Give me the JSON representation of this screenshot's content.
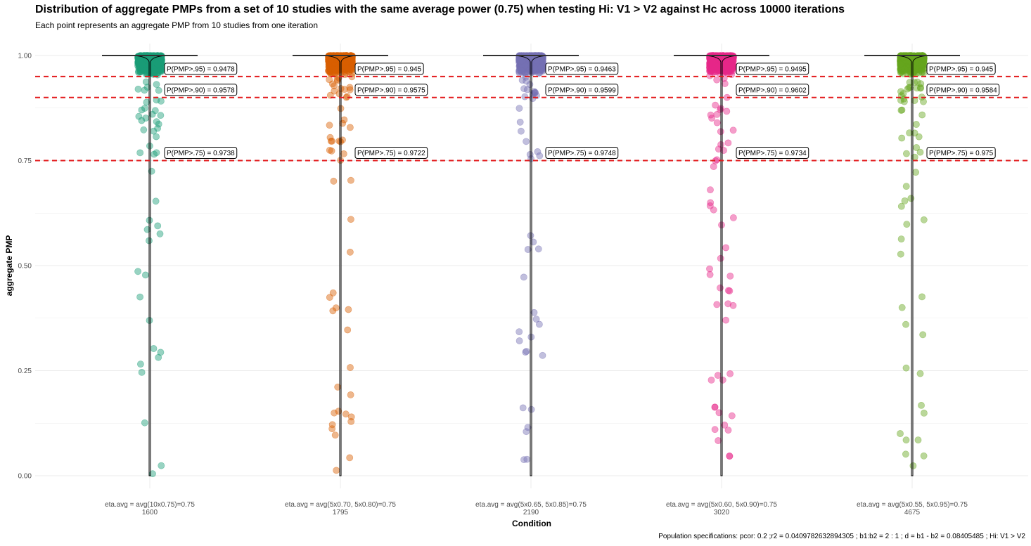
{
  "chart_data": {
    "type": "scatter",
    "title": "Distribution of aggregate PMPs from a set of 10 studies with the same average power (0.75) when testing Hi: V1 > V2 against Hc across 10000 iterations",
    "subtitle": "Each point represents an aggregate PMP from 10 studies from one iteration",
    "xlabel": "Condition",
    "ylabel": "aggregate PMP",
    "ylim": [
      0,
      1
    ],
    "y_ticks": [
      "0.00",
      "0.25",
      "0.50",
      "0.75",
      "1.00"
    ],
    "y_tick_values": [
      0,
      0.25,
      0.5,
      0.75,
      1.0
    ],
    "grid": true,
    "thresholds": [
      0.95,
      0.9,
      0.75
    ],
    "threshold_color": "#e31a1c",
    "categories": [
      {
        "label_line1": "eta.avg = avg(10x0.75)=0.75",
        "label_line2": "1600",
        "color": "#1b9e77"
      },
      {
        "label_line1": "eta.avg = avg(5x0.70, 5x0.80)=0.75",
        "label_line2": "1795",
        "color": "#d95f02"
      },
      {
        "label_line1": "eta.avg = avg(5x0.65, 5x0.85)=0.75",
        "label_line2": "2190",
        "color": "#7570b3"
      },
      {
        "label_line1": "eta.avg = avg(5x0.60, 5x0.90)=0.75",
        "label_line2": "3020",
        "color": "#e7298a"
      },
      {
        "label_line1": "eta.avg = avg(5x0.55, 5x0.95)=0.75",
        "label_line2": "4675",
        "color": "#66a61e"
      }
    ],
    "annotations": [
      [
        "P(PMP>.95) = 0.9478",
        "P(PMP>.90) = 0.9578",
        "P(PMP>.75) = 0.9738"
      ],
      [
        "P(PMP>.95) = 0.945",
        "P(PMP>.90) = 0.9575",
        "P(PMP>.75) = 0.9722"
      ],
      [
        "P(PMP>.95) = 0.9463",
        "P(PMP>.90) = 0.9599",
        "P(PMP>.75) = 0.9748"
      ],
      [
        "P(PMP>.95) = 0.9495",
        "P(PMP>.90) = 0.9602",
        "P(PMP>.75) = 0.9734"
      ],
      [
        "P(PMP>.95) = 0.945",
        "P(PMP>.90) = 0.9584",
        "P(PMP>.75) = 0.975"
      ]
    ],
    "exceed_proportions": [
      [
        0.9478,
        0.9578,
        0.9738
      ],
      [
        0.945,
        0.9575,
        0.9722
      ],
      [
        0.9463,
        0.9599,
        0.9748
      ],
      [
        0.9495,
        0.9602,
        0.9734
      ],
      [
        0.945,
        0.9584,
        0.975
      ]
    ],
    "iterations": 10000,
    "caption": "Population specifications: pcor: 0.2 ;r2 = 0.0409782632894305 ; b1:b2 =  2 : 1 ; d = b1 - b2 = 0.08405485 ; Hi: V1 > V2"
  }
}
